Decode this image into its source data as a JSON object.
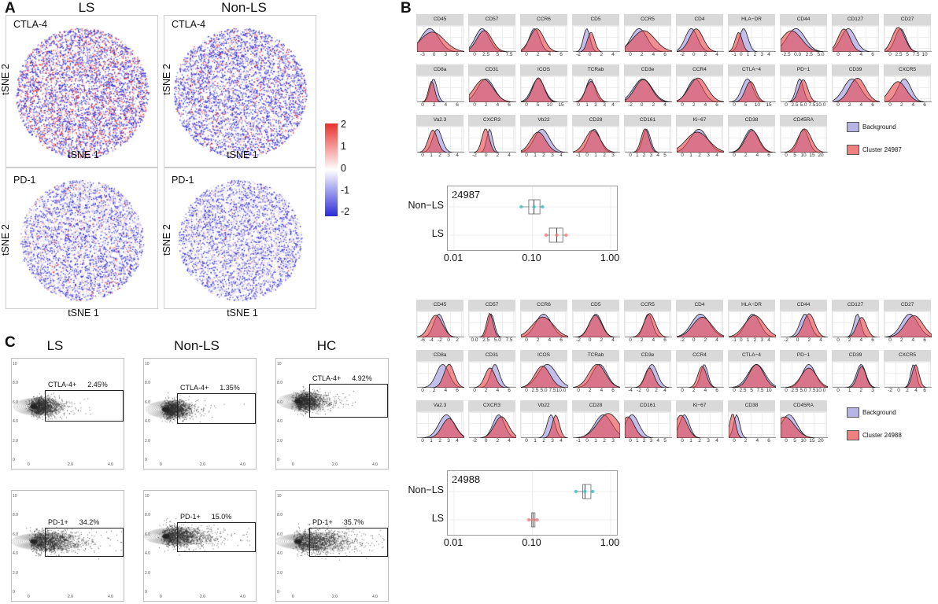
{
  "panelA": {
    "letter": "A",
    "col_titles": [
      "LS",
      "Non-LS"
    ],
    "plots": [
      {
        "id": "ls-ctla4",
        "marker": "CTLA-4",
        "red_share": 0.35,
        "blue_share": 0.55
      },
      {
        "id": "nonls-ctla4",
        "marker": "CTLA-4",
        "red_share": 0.15,
        "blue_share": 0.55
      },
      {
        "id": "ls-pd1",
        "marker": "PD-1",
        "red_share": 0.05,
        "blue_share": 0.4
      },
      {
        "id": "nonls-pd1",
        "marker": "PD-1",
        "red_share": 0.01,
        "blue_share": 0.4
      }
    ],
    "xlabel": "tSNE 1",
    "ylabel": "tSNE 2",
    "colorbar": {
      "ticks": [
        "2",
        "1",
        "0",
        "-1",
        "-2"
      ],
      "high": "#e8312f",
      "mid": "#ffffff",
      "low": "#2b2bd9"
    }
  },
  "panelB": {
    "letter": "B",
    "blocks": [
      {
        "cluster": "24987",
        "legend": [
          "Background",
          "Cluster 24987"
        ],
        "markers": [
          {
            "name": "CD45",
            "ticks": [
              "-3",
              "0",
              "3",
              "6"
            ]
          },
          {
            "name": "CD57",
            "ticks": [
              "0",
              "2.5",
              "5",
              "7.5"
            ]
          },
          {
            "name": "CCR6",
            "ticks": [
              "0",
              "2",
              "4",
              "6"
            ]
          },
          {
            "name": "CD5",
            "ticks": [
              "-2",
              "0",
              "2",
              "4"
            ]
          },
          {
            "name": "CCR5",
            "ticks": [
              "0",
              "2",
              "4",
              "6"
            ]
          },
          {
            "name": "CD4",
            "ticks": [
              "-2",
              "0",
              "2",
              "4"
            ]
          },
          {
            "name": "HLA−DR",
            "ticks": [
              "-1",
              "0",
              "1",
              "2",
              "3",
              "4"
            ]
          },
          {
            "name": "CD44",
            "ticks": [
              "-2.5",
              "0.0",
              "2.5",
              "5.0"
            ]
          },
          {
            "name": "CD127",
            "ticks": [
              "0",
              "2",
              "4",
              "6"
            ]
          },
          {
            "name": "CD27",
            "ticks": [
              "0",
              "2.5",
              "5",
              "7.5",
              "10"
            ]
          },
          {
            "name": "CD8a",
            "ticks": [
              "0",
              "2",
              "4",
              "6"
            ]
          },
          {
            "name": "CD31",
            "ticks": [
              "0",
              "2",
              "4",
              "6"
            ]
          },
          {
            "name": "ICOS",
            "ticks": [
              "0",
              "5",
              "10",
              "15"
            ]
          },
          {
            "name": "TCRab",
            "ticks": [
              "0",
              "1",
              "2",
              "3",
              "4"
            ]
          },
          {
            "name": "CD3e",
            "ticks": [
              "-2",
              "0",
              "2",
              "4"
            ]
          },
          {
            "name": "CCR4",
            "ticks": [
              "0",
              "2",
              "4",
              "6"
            ]
          },
          {
            "name": "CTLA−4",
            "ticks": [
              "0",
              "5",
              "10",
              "15"
            ]
          },
          {
            "name": "PD−1",
            "ticks": [
              "0",
              "2.5",
              "5.0",
              "7.5",
              "10.0"
            ]
          },
          {
            "name": "CD39",
            "ticks": [
              "0",
              "2",
              "4",
              "6"
            ]
          },
          {
            "name": "CXCR5",
            "ticks": [
              "0",
              "2",
              "4",
              "6"
            ]
          },
          {
            "name": "Va2.3",
            "ticks": [
              "0",
              "1",
              "2",
              "3",
              "4"
            ]
          },
          {
            "name": "CXCR3",
            "ticks": [
              "-2",
              "0",
              "2",
              "4"
            ]
          },
          {
            "name": "Vb22",
            "ticks": [
              "0",
              "1",
              "2",
              "3",
              "4"
            ]
          },
          {
            "name": "CD28",
            "ticks": [
              "-1",
              "0",
              "1",
              "2",
              "3"
            ]
          },
          {
            "name": "CD161",
            "ticks": [
              "0",
              "1",
              "2",
              "3",
              "4",
              "5"
            ]
          },
          {
            "name": "Ki−67",
            "ticks": [
              "0",
              "1",
              "2",
              "3",
              "4"
            ]
          },
          {
            "name": "CD38",
            "ticks": [
              "0",
              "2",
              "4",
              "6"
            ]
          },
          {
            "name": "CD45RA",
            "ticks": [
              "0",
              "5",
              "10",
              "15",
              "20"
            ]
          }
        ],
        "boxplot": {
          "categories": [
            "Non−LS",
            "LS"
          ],
          "xticks": [
            "0.01",
            "0.10",
            "1.00"
          ],
          "xrange_log10": [
            -2.0,
            0.0
          ],
          "series": [
            {
              "name": "Non−LS",
              "color": "#3fbfbf",
              "q1": 0.09,
              "median": 0.105,
              "q3": 0.125,
              "min": 0.072,
              "max": 0.135
            },
            {
              "name": "LS",
              "color": "#f08080",
              "q1": 0.165,
              "median": 0.205,
              "q3": 0.245,
              "min": 0.15,
              "max": 0.27
            }
          ]
        }
      },
      {
        "cluster": "24988",
        "legend": [
          "Background",
          "Cluster 24988"
        ],
        "markers": [
          {
            "name": "CD45",
            "ticks": [
              "-6",
              "-4",
              "-2",
              "0",
              "2"
            ]
          },
          {
            "name": "CD57",
            "ticks": [
              "0.0",
              "2.5",
              "5.0",
              "7.5"
            ]
          },
          {
            "name": "CCR6",
            "ticks": [
              "0",
              "2",
              "4",
              "6"
            ]
          },
          {
            "name": "CD5",
            "ticks": [
              "-2",
              "0",
              "2",
              "4"
            ]
          },
          {
            "name": "CCR5",
            "ticks": [
              "0",
              "2",
              "4",
              "6"
            ]
          },
          {
            "name": "CD4",
            "ticks": [
              "-2",
              "0",
              "2",
              "4"
            ]
          },
          {
            "name": "HLA−DR",
            "ticks": [
              "-1",
              "0",
              "1",
              "2",
              "3",
              "4"
            ]
          },
          {
            "name": "CD44",
            "ticks": [
              "-2",
              "0",
              "2",
              "4"
            ]
          },
          {
            "name": "CD127",
            "ticks": [
              "0",
              "2",
              "4",
              "6"
            ]
          },
          {
            "name": "CD27",
            "ticks": [
              "0",
              "2",
              "4",
              "6"
            ]
          },
          {
            "name": "CD8a",
            "ticks": [
              "0",
              "2",
              "4",
              "6"
            ]
          },
          {
            "name": "CD31",
            "ticks": [
              "0",
              "2",
              "4",
              "6"
            ]
          },
          {
            "name": "ICOS",
            "ticks": [
              "0",
              "2.5",
              "5.0",
              "7.5",
              "10.0"
            ]
          },
          {
            "name": "TCRab",
            "ticks": [
              "0",
              "2",
              "4",
              "6"
            ]
          },
          {
            "name": "CD3e",
            "ticks": [
              "-4",
              "-2",
              "0",
              "2",
              "4"
            ]
          },
          {
            "name": "CCR4",
            "ticks": [
              "0",
              "2",
              "4",
              "6"
            ]
          },
          {
            "name": "CTLA−4",
            "ticks": [
              "0",
              "2.5",
              "5",
              "7.5",
              "10"
            ]
          },
          {
            "name": "PD−1",
            "ticks": [
              "0",
              "2.5",
              "5.0",
              "7.5",
              "10.0"
            ]
          },
          {
            "name": "CD39",
            "ticks": [
              "0",
              "1",
              "2",
              "3"
            ]
          },
          {
            "name": "CXCR5",
            "ticks": [
              "-2",
              "0",
              "2",
              "4",
              "6"
            ]
          },
          {
            "name": "Va2.3",
            "ticks": [
              "0",
              "1",
              "2",
              "3",
              "4"
            ]
          },
          {
            "name": "CXCR3",
            "ticks": [
              "-2",
              "0",
              "2",
              "4"
            ]
          },
          {
            "name": "Vb22",
            "ticks": [
              "0",
              "1",
              "2",
              "3",
              "4"
            ]
          },
          {
            "name": "CD28",
            "ticks": [
              "-1",
              "0",
              "1",
              "2",
              "3"
            ]
          },
          {
            "name": "CD161",
            "ticks": [
              "0",
              "1",
              "2",
              "3",
              "4",
              "5"
            ]
          },
          {
            "name": "Ki−67",
            "ticks": [
              "0",
              "1",
              "2",
              "3",
              "4"
            ]
          },
          {
            "name": "CD38",
            "ticks": [
              "0",
              "2",
              "4",
              "6"
            ]
          },
          {
            "name": "CD45RA",
            "ticks": [
              "0",
              "5",
              "10",
              "15",
              "20"
            ]
          }
        ],
        "boxplot": {
          "categories": [
            "Non−LS",
            "LS"
          ],
          "xticks": [
            "0.01",
            "0.10",
            "1.00"
          ],
          "xrange_log10": [
            -2.0,
            0.0
          ],
          "series": [
            {
              "name": "Non−LS",
              "color": "#3fbfbf",
              "q1": 0.44,
              "median": 0.47,
              "q3": 0.56,
              "min": 0.36,
              "max": 0.59
            },
            {
              "name": "LS",
              "color": "#f08080",
              "q1": 0.098,
              "median": 0.102,
              "q3": 0.108,
              "min": 0.09,
              "max": 0.115
            }
          ]
        }
      }
    ],
    "colors": {
      "background": "#b9b4e6",
      "cluster": "#e8424a",
      "overlap": "#b9407a"
    }
  },
  "panelC": {
    "letter": "C",
    "col_titles": [
      "LS",
      "Non-LS",
      "HC"
    ],
    "yticks": [
      "10",
      "8.0",
      "6.0",
      "4.0",
      "2.0",
      "0"
    ],
    "xticks": [
      "0",
      "2.0",
      "4.0"
    ],
    "plots": [
      {
        "id": "ls-ctla",
        "gate": "CTLA-4+",
        "pct": "2.45%",
        "spread": 0.22
      },
      {
        "id": "nonls-ctla",
        "gate": "CTLA-4+",
        "pct": "1.35%",
        "spread": 0.2
      },
      {
        "id": "hc-ctla",
        "gate": "CTLA-4+",
        "pct": "4.92%",
        "spread": 0.26
      },
      {
        "id": "ls-pd1",
        "gate": "PD-1+",
        "pct": "34.2%",
        "spread": 0.6
      },
      {
        "id": "nonls-pd1",
        "gate": "PD-1+",
        "pct": "15.0%",
        "spread": 0.5
      },
      {
        "id": "hc-pd1",
        "gate": "PD-1+",
        "pct": "35.7%",
        "spread": 0.7
      }
    ]
  }
}
